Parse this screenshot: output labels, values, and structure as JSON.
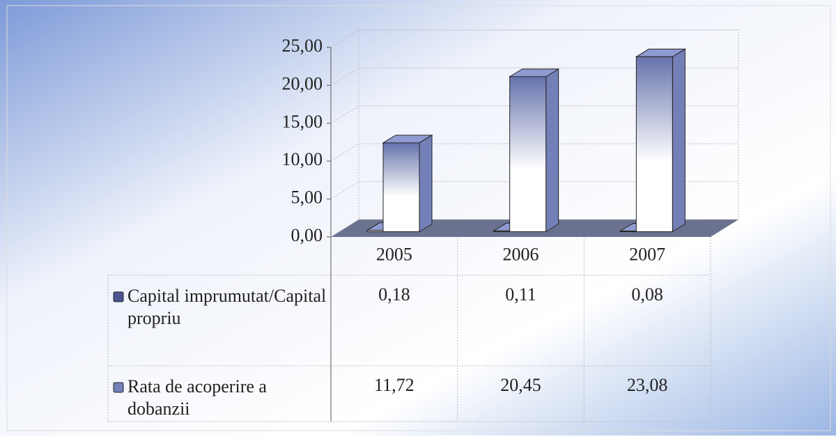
{
  "chart_data": {
    "type": "bar",
    "categories": [
      "2005",
      "2006",
      "2007"
    ],
    "series": [
      {
        "name": "Capital imprumutat/Capital propriu",
        "color": "#4a5590",
        "values": [
          0.18,
          0.11,
          0.08
        ],
        "value_labels": [
          "0,18",
          "0,11",
          "0,08"
        ]
      },
      {
        "name": "Rata de acoperire a dobanzii",
        "color": "#7380b8",
        "values": [
          11.72,
          20.45,
          23.08
        ],
        "value_labels": [
          "11,72",
          "20,45",
          "23,08"
        ]
      }
    ],
    "ylim": [
      0,
      25
    ],
    "yticks": [
      {
        "value": 0,
        "label": "0,00"
      },
      {
        "value": 5,
        "label": "5,00"
      },
      {
        "value": 10,
        "label": "10,00"
      },
      {
        "value": 15,
        "label": "15,00"
      },
      {
        "value": 20,
        "label": "20,00"
      },
      {
        "value": 25,
        "label": "25,00"
      }
    ],
    "grid": true,
    "legend": "table"
  }
}
